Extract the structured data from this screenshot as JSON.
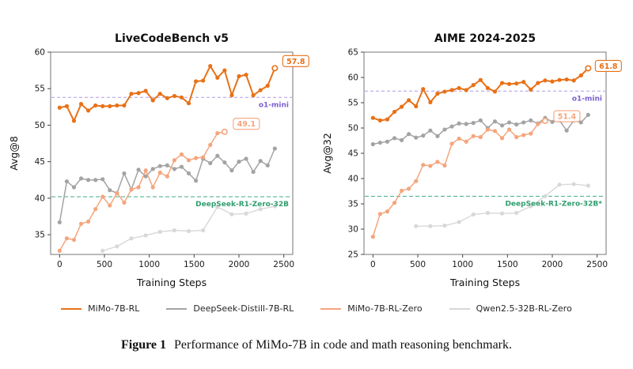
{
  "figure": {
    "caption_label": "Figure 1",
    "caption_text": "Performance of MiMo-7B in code and math reasoning benchmark."
  },
  "legend": {
    "items": [
      {
        "label": "MiMo-7B-RL",
        "color": "#e87117"
      },
      {
        "label": "DeepSeek-Distill-7B-RL",
        "color": "#a3a3a3"
      },
      {
        "label": "MiMo-7B-RL-Zero",
        "color": "#f4a57e"
      },
      {
        "label": "Qwen2.5-32B-RL-Zero",
        "color": "#d8d8d8"
      }
    ]
  },
  "chart_data": [
    {
      "type": "line",
      "title": "LiveCodeBench v5",
      "xlabel": "Training Steps",
      "ylabel": "Avg@8",
      "xlim": [
        -100,
        2600
      ],
      "ylim": [
        32.3,
        60
      ],
      "xticks": [
        0,
        500,
        1000,
        1500,
        2000,
        2500
      ],
      "yticks": [
        35,
        40,
        45,
        50,
        55,
        60
      ],
      "grid": false,
      "legend_position": "figure-bottom",
      "reference_lines": [
        {
          "label": "o1-mini",
          "y": 53.8,
          "line_color": "#b09ae8",
          "label_color": "#7b5ed1",
          "dash": "4 3"
        },
        {
          "label": "DeepSeek-R1-Zero-32B",
          "y": 40.2,
          "line_color": "#41ab85",
          "label_color": "#2f9e6e",
          "dash": "5 3"
        }
      ],
      "series": [
        {
          "name": "Qwen2.5-32B-RL-Zero",
          "color": "#d8d8d8",
          "line_width": 1.4,
          "x": [
            480,
            640,
            800,
            960,
            1120,
            1280,
            1440,
            1600,
            1760,
            1920,
            2080,
            2240,
            2400
          ],
          "y": [
            32.8,
            33.4,
            34.5,
            34.9,
            35.4,
            35.6,
            35.5,
            35.6,
            38.8,
            37.8,
            37.9,
            38.5,
            38.9
          ]
        },
        {
          "name": "DeepSeek-Distill-7B-RL",
          "color": "#a3a3a3",
          "line_width": 1.5,
          "x": [
            0,
            80,
            160,
            240,
            320,
            400,
            480,
            560,
            640,
            720,
            800,
            880,
            960,
            1040,
            1120,
            1200,
            1280,
            1360,
            1440,
            1520,
            1600,
            1680,
            1760,
            1840,
            1920,
            2000,
            2080,
            2160,
            2240,
            2320,
            2400
          ],
          "y": [
            36.7,
            42.3,
            41.5,
            42.7,
            42.5,
            42.5,
            42.6,
            41.1,
            40.7,
            43.4,
            41.2,
            43.9,
            43.0,
            44.0,
            44.4,
            44.5,
            44.0,
            44.3,
            43.4,
            42.4,
            45.4,
            44.8,
            45.8,
            44.9,
            43.8,
            45.0,
            45.4,
            43.6,
            45.1,
            44.5,
            46.8
          ]
        },
        {
          "name": "MiMo-7B-RL-Zero",
          "color": "#f4a57e",
          "line_width": 1.5,
          "x": [
            0,
            80,
            160,
            240,
            320,
            400,
            480,
            560,
            640,
            720,
            800,
            880,
            960,
            1040,
            1120,
            1200,
            1280,
            1360,
            1440,
            1520,
            1600,
            1680,
            1760,
            1840
          ],
          "y": [
            32.8,
            34.5,
            34.3,
            36.5,
            36.8,
            38.5,
            40.2,
            39.0,
            40.7,
            39.4,
            41.2,
            41.5,
            43.8,
            41.5,
            43.5,
            43.0,
            45.2,
            46.0,
            45.2,
            45.5,
            45.6,
            47.3,
            48.9,
            49.1
          ],
          "annotation": {
            "text": "49.1",
            "dx": 11,
            "dy": -10
          }
        },
        {
          "name": "MiMo-7B-RL",
          "color": "#e87117",
          "line_width": 2.0,
          "x": [
            0,
            80,
            160,
            240,
            320,
            400,
            480,
            560,
            640,
            720,
            800,
            880,
            960,
            1040,
            1120,
            1200,
            1280,
            1360,
            1440,
            1520,
            1600,
            1680,
            1760,
            1840,
            1920,
            2000,
            2080,
            2160,
            2240,
            2320,
            2400
          ],
          "y": [
            52.4,
            52.6,
            50.6,
            52.9,
            52.0,
            52.7,
            52.6,
            52.6,
            52.7,
            52.7,
            54.3,
            54.4,
            54.7,
            53.4,
            54.3,
            53.7,
            54.0,
            53.8,
            53.0,
            56.0,
            56.1,
            58.1,
            56.5,
            57.5,
            54.1,
            56.7,
            56.9,
            54.1,
            54.8,
            55.4,
            57.8
          ],
          "annotation": {
            "text": "57.8",
            "dx": 10,
            "dy": -9
          }
        }
      ]
    },
    {
      "type": "line",
      "title": "AIME 2024-2025",
      "xlabel": "Training Steps",
      "ylabel": "Avg@32",
      "xlim": [
        -100,
        2600
      ],
      "ylim": [
        25,
        65
      ],
      "xticks": [
        0,
        500,
        1000,
        1500,
        2000,
        2500
      ],
      "yticks": [
        25,
        30,
        35,
        40,
        45,
        50,
        55,
        60,
        65
      ],
      "grid": false,
      "legend_position": "figure-bottom",
      "reference_lines": [
        {
          "label": "o1-mini",
          "y": 57.3,
          "line_color": "#b09ae8",
          "label_color": "#7b5ed1",
          "dash": "4 3"
        },
        {
          "label": "DeepSeek-R1-Zero-32B*",
          "y": 36.5,
          "line_color": "#41ab85",
          "label_color": "#2f9e6e",
          "dash": "5 3"
        }
      ],
      "series": [
        {
          "name": "Qwen2.5-32B-RL-Zero",
          "color": "#d8d8d8",
          "line_width": 1.4,
          "x": [
            480,
            640,
            800,
            960,
            1120,
            1280,
            1440,
            1600,
            1760,
            1920,
            2080,
            2240,
            2400
          ],
          "y": [
            30.6,
            30.6,
            30.7,
            31.4,
            32.9,
            33.2,
            33.1,
            33.2,
            34.5,
            36.5,
            38.8,
            38.9,
            38.6
          ]
        },
        {
          "name": "DeepSeek-Distill-7B-RL",
          "color": "#a3a3a3",
          "line_width": 1.5,
          "x": [
            0,
            80,
            160,
            240,
            320,
            400,
            480,
            560,
            640,
            720,
            800,
            880,
            960,
            1040,
            1120,
            1200,
            1280,
            1360,
            1440,
            1520,
            1600,
            1680,
            1760,
            1840,
            1920,
            2000,
            2080,
            2160,
            2240,
            2320,
            2400
          ],
          "y": [
            46.8,
            47.1,
            47.3,
            48.0,
            47.6,
            48.8,
            48.1,
            48.5,
            49.5,
            48.4,
            49.7,
            50.3,
            50.9,
            50.8,
            51.0,
            51.5,
            50.0,
            51.3,
            50.5,
            51.1,
            50.7,
            51.1,
            51.5,
            50.9,
            52.0,
            51.2,
            51.5,
            49.5,
            51.5,
            51.1,
            52.6
          ]
        },
        {
          "name": "MiMo-7B-RL-Zero",
          "color": "#f4a57e",
          "line_width": 1.5,
          "x": [
            0,
            80,
            160,
            240,
            320,
            400,
            480,
            560,
            640,
            720,
            800,
            880,
            960,
            1040,
            1120,
            1200,
            1280,
            1360,
            1440,
            1520,
            1600,
            1680,
            1760,
            1840,
            1920
          ],
          "y": [
            28.5,
            33.0,
            33.5,
            35.2,
            37.6,
            38.0,
            39.5,
            42.7,
            42.5,
            43.3,
            42.6,
            46.9,
            47.9,
            47.3,
            48.4,
            48.2,
            49.7,
            49.4,
            48.0,
            49.7,
            48.2,
            48.6,
            48.9,
            50.8,
            51.4
          ],
          "annotation": {
            "text": "51.4",
            "dx": 11,
            "dy": -6
          }
        },
        {
          "name": "MiMo-7B-RL",
          "color": "#e87117",
          "line_width": 2.0,
          "x": [
            0,
            80,
            160,
            240,
            320,
            400,
            480,
            560,
            640,
            720,
            800,
            880,
            960,
            1040,
            1120,
            1200,
            1280,
            1360,
            1440,
            1520,
            1600,
            1680,
            1760,
            1840,
            1920,
            2000,
            2080,
            2160,
            2240,
            2320,
            2400
          ],
          "y": [
            52.0,
            51.5,
            51.7,
            53.2,
            54.2,
            55.5,
            54.3,
            57.7,
            55.1,
            56.8,
            57.2,
            57.5,
            57.9,
            57.5,
            58.5,
            59.5,
            57.9,
            57.2,
            58.9,
            58.7,
            58.8,
            59.1,
            57.6,
            58.9,
            59.4,
            59.2,
            59.5,
            59.6,
            59.4,
            60.4,
            61.8
          ],
          "annotation": {
            "text": "61.8",
            "dx": 9,
            "dy": -3
          }
        }
      ]
    }
  ]
}
